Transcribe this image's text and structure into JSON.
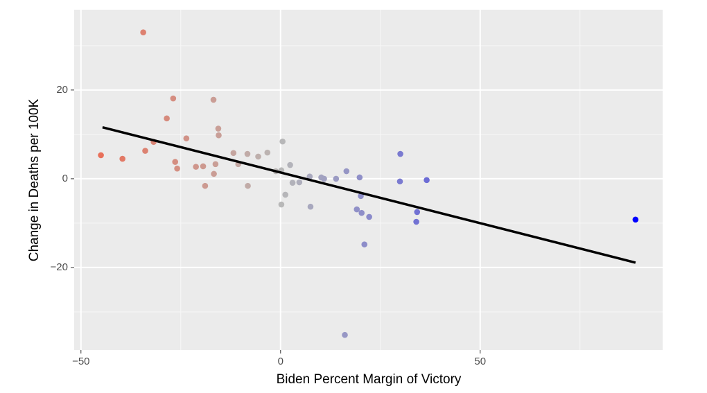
{
  "chart_data": {
    "type": "scatter",
    "x_label": "Biden Percent Margin of Victory",
    "y_label": "Change in Deaths per 100K",
    "x": [
      -34.4,
      -45.0,
      -39.6,
      -33.9,
      -31.8,
      -28.5,
      -26.9,
      -26.4,
      -25.9,
      -23.6,
      -21.2,
      -19.4,
      -18.9,
      -16.8,
      -16.7,
      -16.3,
      -15.6,
      -15.5,
      -11.8,
      -10.6,
      -8.3,
      -8.2,
      -5.6,
      -3.3,
      -1.2,
      0.2,
      0.5,
      0.2,
      1.2,
      2.4,
      3.0,
      4.7,
      7.3,
      7.5,
      10.2,
      10.9,
      13.9,
      16.5,
      16.1,
      19.1,
      19.8,
      20.1,
      20.3,
      21.0,
      22.2,
      30.0,
      29.9,
      34.2,
      34.0,
      36.6,
      88.9
    ],
    "y": [
      33.0,
      5.3,
      4.5,
      6.3,
      8.3,
      13.6,
      18.1,
      3.8,
      2.3,
      9.1,
      2.7,
      2.8,
      -1.6,
      17.8,
      1.1,
      3.3,
      11.3,
      9.8,
      5.8,
      3.3,
      5.6,
      -1.6,
      5.0,
      5.9,
      1.7,
      1.9,
      8.4,
      -5.8,
      -3.6,
      3.1,
      -0.9,
      -0.8,
      0.5,
      -6.3,
      0.3,
      0.0,
      0.0,
      1.7,
      -35.2,
      -6.9,
      0.3,
      -3.9,
      -7.7,
      -14.8,
      -8.6,
      5.6,
      -0.6,
      -7.5,
      -9.7,
      -0.3,
      -9.2
    ],
    "color_low": "#e8705a",
    "color_mid": "#b8b8b8",
    "color_high": "#0000ff",
    "trend_line": {
      "x": [
        -44.6,
        88.9
      ],
      "y": [
        11.6,
        -18.9
      ],
      "color": "#000000"
    },
    "xlim": [
      -51.7,
      95.7
    ],
    "ylim": [
      -38.6,
      38.1
    ],
    "xticks": [
      {
        "value": -50,
        "label": "−50"
      },
      0,
      50
    ],
    "yticks": [
      {
        "value": -20,
        "label": "−20"
      },
      0,
      20
    ],
    "x_minor_ticks": [
      -25,
      25,
      75
    ],
    "y_minor_ticks": [
      -30,
      -10,
      10,
      30
    ],
    "grid": true
  }
}
